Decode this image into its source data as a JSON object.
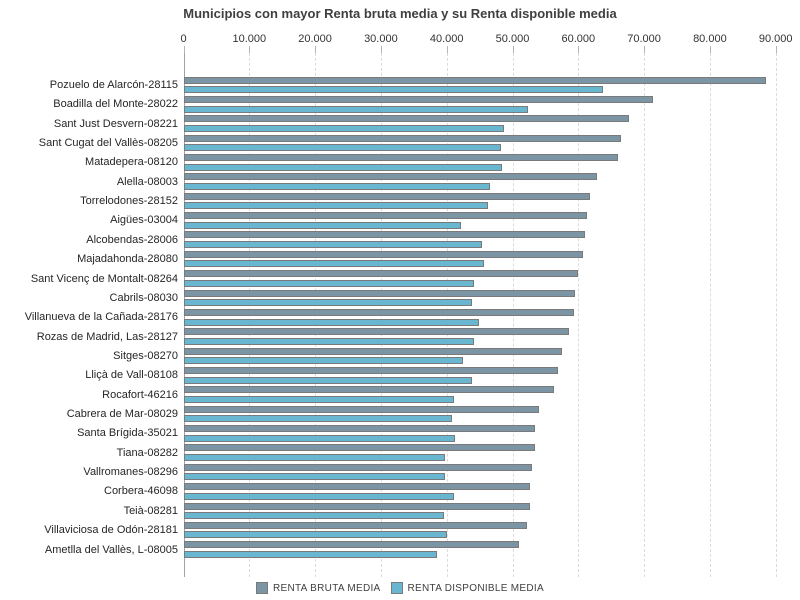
{
  "chart_data": {
    "type": "bar",
    "orientation": "horizontal",
    "title": "Municipios con mayor Renta bruta media y su Renta disponible media",
    "categories": [
      "Pozuelo de Alarcón-28115",
      "Boadilla del Monte-28022",
      "Sant Just Desvern-08221",
      "Sant Cugat del Vallès-08205",
      "Matadepera-08120",
      "Alella-08003",
      "Torrelodones-28152",
      "Aigües-03004",
      "Alcobendas-28006",
      "Majadahonda-28080",
      "Sant Vicenç de Montalt-08264",
      "Cabrils-08030",
      "Villanueva de la Cañada-28176",
      "Rozas de Madrid, Las-28127",
      "Sitges-08270",
      "Lliçà de Vall-08108",
      "Rocafort-46216",
      "Cabrera de Mar-08029",
      "Santa Brígida-35021",
      "Tiana-08282",
      "Vallromanes-08296",
      "Corbera-46098",
      "Teià-08281",
      "Villaviciosa de Odón-28181",
      "Ametlla del Vallès, L-08005"
    ],
    "series": [
      {
        "name": "RENTA BRUTA MEDIA",
        "color": "#7b95a4",
        "border_color": "#7a7a7a",
        "values": [
          88100,
          71000,
          67300,
          66100,
          65600,
          62500,
          61400,
          61000,
          60600,
          60300,
          59500,
          59100,
          59000,
          58200,
          57200,
          56600,
          55900,
          53600,
          53100,
          53100,
          52600,
          52300,
          52300,
          51800,
          50600
        ]
      },
      {
        "name": "RENTA DISPONIBLE MEDIA",
        "color": "#68b6cf",
        "border_color": "#7a7a7a",
        "values": [
          63400,
          51900,
          48400,
          47800,
          48100,
          46200,
          45900,
          41800,
          45000,
          45300,
          43800,
          43500,
          44500,
          43800,
          42100,
          43400,
          40700,
          40400,
          40900,
          39400,
          39400,
          40700,
          39200,
          39600,
          38200
        ]
      }
    ],
    "xlim": [
      0,
      90000
    ],
    "x_tick_values": [
      0,
      10000,
      20000,
      30000,
      40000,
      50000,
      60000,
      70000,
      80000,
      90000
    ],
    "x_tick_labels": [
      "0",
      "10.000",
      "20.000",
      "30.000",
      "40.000",
      "50.000",
      "60.000",
      "70.000",
      "80.000",
      "90.000"
    ],
    "grid": "vertical-dashed",
    "legend_position": "bottom",
    "axis_position": "top"
  },
  "colors": {
    "background": "#ffffff",
    "gridline": "#dbdbdb",
    "axis_line": "#a3a3a3",
    "tick": "#b5b5b5",
    "title_text": "#3f3f3f",
    "label_text": "#262626"
  }
}
